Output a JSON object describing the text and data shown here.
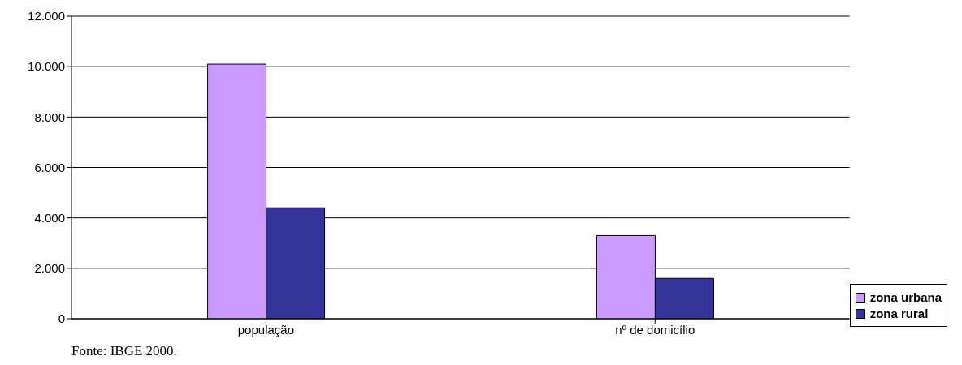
{
  "chart_data": {
    "type": "bar",
    "categories": [
      "população",
      "nº de domicílio"
    ],
    "series": [
      {
        "name": "zona urbana",
        "color": "#cc99ff",
        "values": [
          10100,
          3300
        ]
      },
      {
        "name": "zona rural",
        "color": "#333399",
        "values": [
          4400,
          1600
        ]
      }
    ],
    "ylim": [
      0,
      12000
    ],
    "yticks": [
      {
        "value": 0,
        "label": "0"
      },
      {
        "value": 2000,
        "label": "2.000"
      },
      {
        "value": 4000,
        "label": "4.000"
      },
      {
        "value": 6000,
        "label": "6.000"
      },
      {
        "value": 8000,
        "label": "8.000"
      },
      {
        "value": 10000,
        "label": "10.000"
      },
      {
        "value": 12000,
        "label": "12.000"
      }
    ],
    "grid": "y",
    "legend": "right",
    "annotations": [
      "Fonte: IBGE 2000."
    ]
  }
}
